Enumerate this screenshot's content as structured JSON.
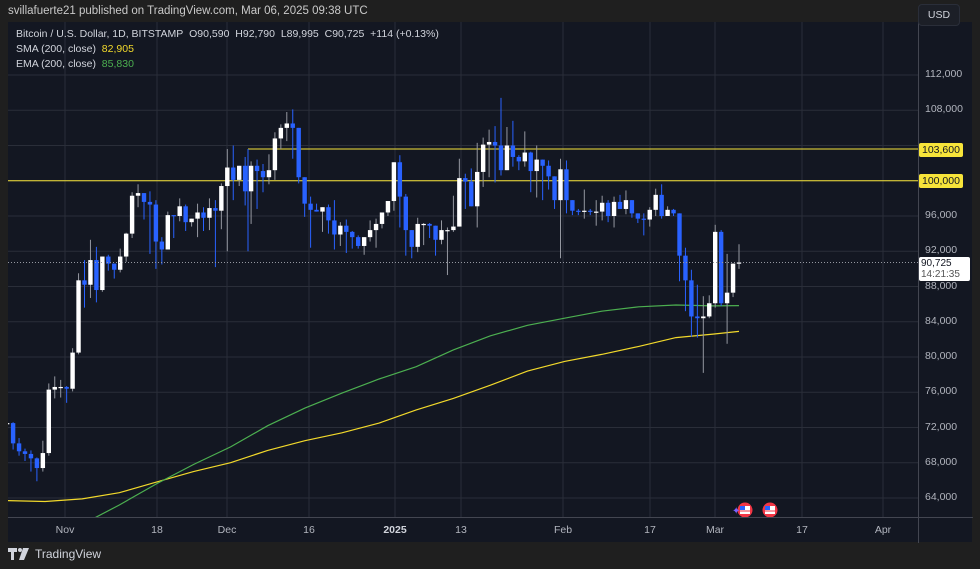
{
  "publisher_line": "svillafuerte21 published on TradingView.com, Mar 06, 2025 09:38 UTC",
  "legend": {
    "symbol": "Bitcoin / U.S. Dollar, 1D, BITSTAMP",
    "open": "O90,590",
    "high": "H92,790",
    "low": "L89,995",
    "close": "C90,725",
    "change": "+114 (+0.13%)",
    "sma_label": "SMA (200, close)",
    "sma_value": "82,905",
    "ema_label": "EMA (200, close)",
    "ema_value": "85,830"
  },
  "currency_button": "USD",
  "price_axis": {
    "ticks": [
      "112,000",
      "108,000",
      "96,000",
      "92,000",
      "88,000",
      "84,000",
      "80,000",
      "76,000",
      "72,000",
      "68,000",
      "64,000"
    ],
    "level_labels": [
      "103,600",
      "100,000"
    ],
    "last_price": "90,725",
    "countdown": "14:21:35"
  },
  "time_axis": {
    "labels": [
      {
        "text": "Nov",
        "x": 57,
        "bold": false
      },
      {
        "text": "18",
        "x": 149,
        "bold": false
      },
      {
        "text": "Dec",
        "x": 219,
        "bold": false
      },
      {
        "text": "16",
        "x": 301,
        "bold": false
      },
      {
        "text": "2025",
        "x": 387,
        "bold": true
      },
      {
        "text": "13",
        "x": 453,
        "bold": false
      },
      {
        "text": "Feb",
        "x": 555,
        "bold": false
      },
      {
        "text": "17",
        "x": 642,
        "bold": false
      },
      {
        "text": "Mar",
        "x": 707,
        "bold": false
      },
      {
        "text": "17",
        "x": 794,
        "bold": false
      },
      {
        "text": "Apr",
        "x": 875,
        "bold": false
      }
    ]
  },
  "footer": {
    "brand": "TradingView"
  },
  "colors": {
    "up": "#ffffff",
    "down": "#2962ff",
    "sma": "#f2d92b",
    "ema": "#4caf50",
    "level": "#f7e43a",
    "grid": "#2a2e39",
    "background": "#131722"
  },
  "chart_data": {
    "type": "candlestick",
    "title": "Bitcoin / U.S. Dollar, 1D, BITSTAMP",
    "xlabel": "",
    "ylabel": "USD",
    "ylim": [
      62000,
      116000
    ],
    "grid": true,
    "legend_position": "top-left",
    "x_tick_labels": [
      "Nov",
      "18",
      "Dec",
      "16",
      "2025",
      "13",
      "Feb",
      "17",
      "Mar",
      "17",
      "Apr"
    ],
    "y_tick_labels": [
      "64,000",
      "68,000",
      "72,000",
      "76,000",
      "80,000",
      "84,000",
      "88,000",
      "92,000",
      "96,000",
      "100,000",
      "103,600",
      "108,000",
      "112,000"
    ],
    "horizontal_levels": [
      {
        "price": 103600,
        "start": "2024-12-05",
        "color": "#f7e43a"
      },
      {
        "price": 100000,
        "start": "2024-10-22",
        "color": "#f7e43a"
      }
    ],
    "last_close": 90725,
    "ohlc_last": {
      "open": 90590,
      "high": 92790,
      "low": 89995,
      "close": 90725,
      "change": 114,
      "change_pct": 0.13
    },
    "indicators": [
      {
        "name": "SMA (200, close)",
        "value": 82905,
        "color": "#f2d92b",
        "points": [
          [
            0,
            63700
          ],
          [
            20,
            63600
          ],
          [
            40,
            63900
          ],
          [
            60,
            64600
          ],
          [
            80,
            65800
          ],
          [
            100,
            67000
          ],
          [
            120,
            68000
          ],
          [
            140,
            69400
          ],
          [
            160,
            70500
          ],
          [
            180,
            71400
          ],
          [
            200,
            72500
          ],
          [
            220,
            74000
          ],
          [
            240,
            75300
          ],
          [
            260,
            76800
          ],
          [
            280,
            78400
          ],
          [
            300,
            79500
          ],
          [
            320,
            80300
          ],
          [
            340,
            81200
          ],
          [
            360,
            82200
          ],
          [
            380,
            82600
          ],
          [
            394,
            82905
          ]
        ]
      },
      {
        "name": "EMA (200, close)",
        "value": 85830,
        "color": "#4caf50",
        "points": [
          [
            0,
            58500
          ],
          [
            20,
            59500
          ],
          [
            40,
            61000
          ],
          [
            60,
            63200
          ],
          [
            80,
            65600
          ],
          [
            100,
            67800
          ],
          [
            120,
            69800
          ],
          [
            140,
            72200
          ],
          [
            160,
            74200
          ],
          [
            180,
            75900
          ],
          [
            200,
            77500
          ],
          [
            220,
            78900
          ],
          [
            240,
            80800
          ],
          [
            260,
            82400
          ],
          [
            280,
            83600
          ],
          [
            300,
            84400
          ],
          [
            320,
            85200
          ],
          [
            340,
            85700
          ],
          [
            360,
            85900
          ],
          [
            380,
            85800
          ],
          [
            394,
            85830
          ]
        ]
      }
    ],
    "candles": [
      [
        66700,
        67800,
        66000,
        67300
      ],
      [
        67300,
        68200,
        65600,
        66600
      ],
      [
        66600,
        68300,
        64800,
        67900
      ],
      [
        67900,
        69200,
        66500,
        67600
      ],
      [
        67600,
        68300,
        66700,
        66900
      ],
      [
        66900,
        68700,
        66700,
        68800
      ],
      [
        68800,
        71500,
        68000,
        72400
      ],
      [
        72400,
        73600,
        71500,
        72500
      ],
      [
        72500,
        72600,
        69500,
        70200
      ],
      [
        70200,
        70800,
        68800,
        69300
      ],
      [
        69300,
        69600,
        68200,
        69000
      ],
      [
        69000,
        69400,
        67000,
        68500
      ],
      [
        68500,
        68600,
        65900,
        67400
      ],
      [
        67400,
        70500,
        67000,
        69100
      ],
      [
        69100,
        77000,
        68800,
        76300
      ],
      [
        76300,
        77800,
        75300,
        76600
      ],
      [
        76600,
        77400,
        75400,
        76600
      ],
      [
        76600,
        76700,
        74800,
        76400
      ],
      [
        76400,
        81000,
        76100,
        80500
      ],
      [
        80500,
        89500,
        80300,
        88700
      ],
      [
        88700,
        91000,
        85600,
        88200
      ],
      [
        88200,
        93300,
        86700,
        91000
      ],
      [
        91000,
        92500,
        86200,
        87600
      ],
      [
        87600,
        91300,
        87400,
        91400
      ],
      [
        91400,
        91600,
        89800,
        90600
      ],
      [
        90600,
        90400,
        88900,
        89900
      ],
      [
        89900,
        92300,
        89600,
        91400
      ],
      [
        91400,
        94100,
        90800,
        94000
      ],
      [
        94000,
        98700,
        93500,
        98300
      ],
      [
        98300,
        99600,
        97000,
        98600
      ],
      [
        98600,
        97800,
        95600,
        97600
      ],
      [
        97600,
        98800,
        91700,
        97300
      ],
      [
        97300,
        97800,
        90000,
        93100
      ],
      [
        93100,
        93600,
        90500,
        92200
      ],
      [
        92200,
        96500,
        92300,
        96100
      ],
      [
        96100,
        96100,
        93500,
        96000
      ],
      [
        96000,
        98000,
        95400,
        97100
      ],
      [
        97100,
        97300,
        94300,
        95300
      ],
      [
        95300,
        95600,
        94800,
        95700
      ],
      [
        95700,
        97400,
        93600,
        96400
      ],
      [
        96400,
        97000,
        94300,
        95800
      ],
      [
        95800,
        98000,
        94400,
        96900
      ],
      [
        96900,
        97800,
        90200,
        96600
      ],
      [
        96600,
        99700,
        94500,
        99400
      ],
      [
        99400,
        103600,
        92000,
        101500
      ],
      [
        101500,
        104000,
        97800,
        100100
      ],
      [
        100100,
        101500,
        99400,
        101700
      ],
      [
        101700,
        102700,
        97200,
        98800
      ],
      [
        98800,
        102200,
        95100,
        101700
      ],
      [
        101700,
        102400,
        96800,
        101100
      ],
      [
        101100,
        101900,
        98700,
        100400
      ],
      [
        100400,
        103000,
        99600,
        101200
      ],
      [
        101200,
        105500,
        100100,
        104800
      ],
      [
        104800,
        106400,
        103600,
        106000
      ],
      [
        106000,
        107800,
        104500,
        106500
      ],
      [
        106500,
        108100,
        102500,
        106000
      ],
      [
        106000,
        106000,
        99700,
        100400
      ],
      [
        100400,
        99000,
        95900,
        97400
      ],
      [
        97400,
        98200,
        92400,
        96700
      ],
      [
        96700,
        97400,
        96500,
        96500
      ],
      [
        96500,
        96600,
        94200,
        97000
      ],
      [
        97000,
        97300,
        94000,
        95500
      ],
      [
        95500,
        97800,
        92200,
        93900
      ],
      [
        93900,
        95300,
        92600,
        94900
      ],
      [
        94900,
        95600,
        91800,
        94200
      ],
      [
        94200,
        94300,
        92300,
        93600
      ],
      [
        93600,
        93800,
        92300,
        92600
      ],
      [
        92600,
        93400,
        91600,
        93600
      ],
      [
        93600,
        95500,
        93100,
        94400
      ],
      [
        94400,
        95700,
        92400,
        95100
      ],
      [
        95100,
        96100,
        94600,
        96400
      ],
      [
        96400,
        97400,
        96000,
        97700
      ],
      [
        97700,
        101000,
        96600,
        102100
      ],
      [
        102100,
        102900,
        94700,
        98200
      ],
      [
        98200,
        98500,
        91500,
        94400
      ],
      [
        94400,
        93900,
        91200,
        92500
      ],
      [
        92500,
        95800,
        91900,
        95100
      ],
      [
        95100,
        95200,
        92700,
        95100
      ],
      [
        95100,
        95200,
        93500,
        94900
      ],
      [
        94900,
        94300,
        91500,
        93300
      ],
      [
        93300,
        95500,
        92800,
        94400
      ],
      [
        94400,
        94700,
        89300,
        94400
      ],
      [
        94400,
        98300,
        94200,
        94800
      ],
      [
        94800,
        102500,
        94800,
        100300
      ],
      [
        100300,
        100800,
        96800,
        99900
      ],
      [
        99900,
        101400,
        97300,
        97100
      ],
      [
        97100,
        104300,
        94700,
        101000
      ],
      [
        101000,
        104900,
        99300,
        104100
      ],
      [
        104100,
        105800,
        100400,
        104400
      ],
      [
        104400,
        106200,
        99800,
        104000
      ],
      [
        104000,
        109400,
        100600,
        101200
      ],
      [
        101200,
        106100,
        102400,
        104000
      ],
      [
        104000,
        106800,
        101600,
        102700
      ],
      [
        102700,
        102900,
        101200,
        102200
      ],
      [
        102200,
        105600,
        101600,
        103200
      ],
      [
        103200,
        103300,
        98700,
        101100
      ],
      [
        101100,
        104000,
        98100,
        102400
      ],
      [
        102400,
        102100,
        97800,
        101700
      ],
      [
        101700,
        102300,
        99000,
        100500
      ],
      [
        100500,
        100200,
        96800,
        97800
      ],
      [
        97800,
        102500,
        91200,
        101300
      ],
      [
        101300,
        102300,
        96300,
        97800
      ],
      [
        97800,
        97200,
        96100,
        96600
      ],
      [
        96600,
        96800,
        96100,
        96500
      ],
      [
        96500,
        99000,
        95700,
        96600
      ],
      [
        96600,
        96800,
        96100,
        96500
      ],
      [
        96500,
        97800,
        94900,
        96500
      ],
      [
        96500,
        98300,
        95500,
        97500
      ],
      [
        97500,
        97800,
        95300,
        96000
      ],
      [
        96000,
        98200,
        94700,
        97600
      ],
      [
        97600,
        98400,
        96800,
        96800
      ],
      [
        96800,
        98900,
        96200,
        97800
      ],
      [
        97800,
        97500,
        95800,
        96300
      ],
      [
        96300,
        96300,
        95200,
        95700
      ],
      [
        95700,
        96300,
        93800,
        95600
      ],
      [
        95600,
        97000,
        94800,
        96700
      ],
      [
        96700,
        99100,
        96000,
        98400
      ],
      [
        98400,
        99600,
        95700,
        96000
      ],
      [
        96000,
        97100,
        96300,
        96700
      ],
      [
        96700,
        96800,
        96000,
        96300
      ],
      [
        96300,
        96300,
        88600,
        91500
      ],
      [
        91500,
        92400,
        85200,
        88700
      ],
      [
        88700,
        89900,
        82300,
        84600
      ],
      [
        84600,
        88200,
        82200,
        84400
      ],
      [
        84400,
        86900,
        78200,
        84600
      ],
      [
        84600,
        87000,
        84400,
        86100
      ],
      [
        86100,
        95000,
        85600,
        94200
      ],
      [
        94200,
        94400,
        85800,
        86100
      ],
      [
        86100,
        91700,
        81500,
        87300
      ],
      [
        87300,
        90500,
        86800,
        90600
      ],
      [
        90590,
        92790,
        89995,
        90725
      ]
    ]
  }
}
